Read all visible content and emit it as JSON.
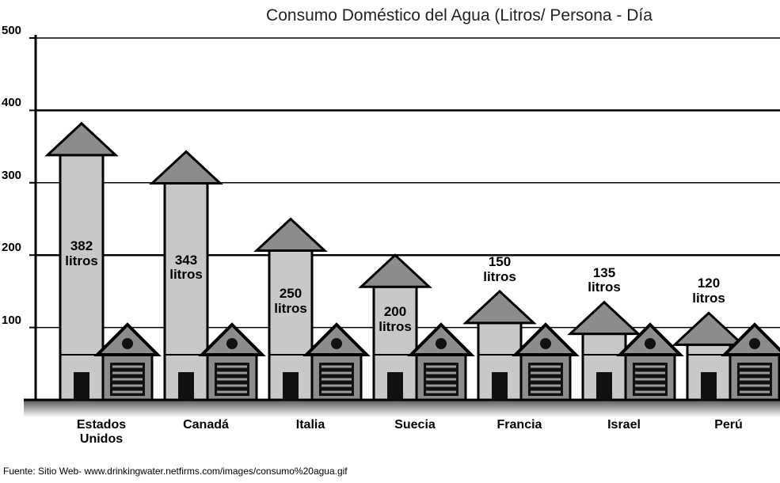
{
  "chart_data": {
    "type": "bar",
    "title": "Consumo Doméstico del Agua (Litros/ Persona - Día",
    "source": "Fuente: Sitio Web- www.drinkingwater.netfirms.com/images/consumo%20agua.gif",
    "categories": [
      "Estados Unidos",
      "Canadá",
      "Italia",
      "Suecia",
      "Francia",
      "Israel",
      "Perú"
    ],
    "values": [
      382,
      343,
      250,
      200,
      150,
      135,
      120
    ],
    "value_labels": [
      "382 litros",
      "343 litros",
      "250 litros",
      "200 litros",
      "150 litros",
      "135 litros",
      "120 litros"
    ],
    "color": "#c8c8c8",
    "ylim": [
      0,
      500
    ],
    "yticks": [
      100,
      200,
      300,
      400,
      500
    ],
    "grid": true
  }
}
